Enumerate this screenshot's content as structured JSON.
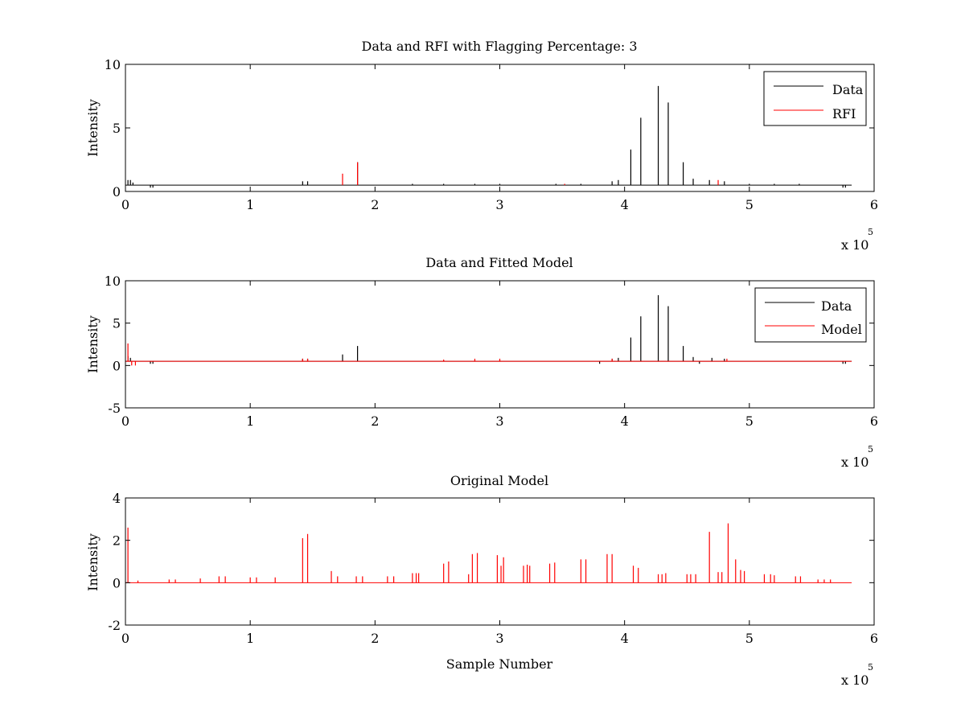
{
  "figure": {
    "background": "#ffffff",
    "axis_color": "#000000"
  },
  "chart_data": [
    {
      "type": "line",
      "title": "Data and RFI with Flagging Percentage: 3",
      "xlabel": "",
      "ylabel": "Intensity",
      "xlim": [
        0,
        6
      ],
      "ylim": [
        0,
        10
      ],
      "xticks": [
        "0",
        "1",
        "2",
        "3",
        "4",
        "5",
        "6"
      ],
      "yticks": [
        "0",
        "5",
        "10"
      ],
      "x_multiplier_base": "x 10",
      "x_multiplier_exp": "5",
      "grid": false,
      "legend_position": "top-right",
      "baseline": 0.5,
      "series": [
        {
          "name": "Data",
          "color": "#000000",
          "spikes": [
            [
              0.02,
              0.9
            ],
            [
              0.04,
              0.9
            ],
            [
              0.06,
              0.7
            ],
            [
              1.42,
              0.8
            ],
            [
              1.46,
              0.8
            ],
            [
              1.86,
              2.3
            ],
            [
              4.05,
              3.3
            ],
            [
              4.13,
              5.8
            ],
            [
              4.27,
              8.3
            ],
            [
              4.35,
              7.0
            ],
            [
              4.47,
              2.3
            ],
            [
              4.55,
              1.0
            ],
            [
              4.68,
              0.9
            ],
            [
              4.8,
              0.8
            ],
            [
              3.9,
              0.8
            ],
            [
              3.95,
              0.9
            ],
            [
              2.3,
              0.6
            ],
            [
              2.55,
              0.6
            ],
            [
              2.8,
              0.6
            ],
            [
              3.0,
              0.6
            ],
            [
              3.45,
              0.6
            ],
            [
              3.65,
              0.6
            ],
            [
              5.0,
              0.6
            ],
            [
              5.2,
              0.6
            ],
            [
              5.4,
              0.6
            ]
          ],
          "dips": [
            [
              0.2,
              0.3
            ],
            [
              0.22,
              0.3
            ],
            [
              5.75,
              0.3
            ],
            [
              5.77,
              0.3
            ]
          ]
        },
        {
          "name": "RFI",
          "color": "#ff0000",
          "spikes": [
            [
              1.74,
              1.4
            ],
            [
              1.86,
              2.3
            ],
            [
              3.52,
              0.6
            ],
            [
              4.75,
              0.9
            ]
          ]
        }
      ]
    },
    {
      "type": "line",
      "title": "Data and Fitted Model",
      "xlabel": "",
      "ylabel": "Intensity",
      "xlim": [
        0,
        6
      ],
      "ylim": [
        -5,
        10
      ],
      "xticks": [
        "0",
        "1",
        "2",
        "3",
        "4",
        "5",
        "6"
      ],
      "yticks": [
        "-5",
        "0",
        "5",
        "10"
      ],
      "x_multiplier_base": "x 10",
      "x_multiplier_exp": "5",
      "grid": false,
      "legend_position": "top-right",
      "baseline": 0.5,
      "series": [
        {
          "name": "Data",
          "color": "#000000",
          "spikes": [
            [
              0.02,
              1.1
            ],
            [
              0.04,
              0.9
            ],
            [
              1.42,
              0.8
            ],
            [
              1.46,
              0.8
            ],
            [
              1.74,
              1.3
            ],
            [
              1.86,
              2.3
            ],
            [
              4.05,
              3.3
            ],
            [
              4.13,
              5.8
            ],
            [
              4.27,
              8.3
            ],
            [
              4.35,
              7.0
            ],
            [
              4.47,
              2.3
            ],
            [
              4.55,
              1.0
            ],
            [
              3.9,
              0.8
            ],
            [
              3.95,
              0.9
            ],
            [
              4.7,
              0.9
            ],
            [
              4.8,
              0.8
            ],
            [
              2.55,
              0.6
            ],
            [
              2.8,
              0.6
            ],
            [
              3.0,
              0.6
            ]
          ],
          "dips": [
            [
              0.2,
              0.2
            ],
            [
              0.22,
              0.2
            ],
            [
              3.8,
              0.2
            ],
            [
              4.6,
              0.2
            ],
            [
              5.75,
              0.2
            ],
            [
              5.77,
              0.2
            ]
          ]
        },
        {
          "name": "Model",
          "color": "#ff0000",
          "spikes": [
            [
              0.02,
              2.6
            ],
            [
              1.42,
              0.8
            ],
            [
              1.46,
              0.8
            ],
            [
              2.55,
              0.7
            ],
            [
              2.8,
              0.8
            ],
            [
              3.0,
              0.8
            ],
            [
              3.9,
              0.8
            ],
            [
              4.82,
              0.8
            ]
          ],
          "dips": [
            [
              0.05,
              0.0
            ],
            [
              0.08,
              0.0
            ]
          ]
        }
      ]
    },
    {
      "type": "line",
      "title": "Original Model",
      "xlabel": "Sample Number",
      "ylabel": "Intensity",
      "xlim": [
        0,
        6
      ],
      "ylim": [
        -2,
        4
      ],
      "xticks": [
        "0",
        "1",
        "2",
        "3",
        "4",
        "5",
        "6"
      ],
      "yticks": [
        "-2",
        "0",
        "2",
        "4"
      ],
      "x_multiplier_base": "x 10",
      "x_multiplier_exp": "5",
      "grid": false,
      "legend_position": "none",
      "baseline": 0.0,
      "series": [
        {
          "name": "",
          "color": "#ff0000",
          "spikes": [
            [
              0.02,
              2.6
            ],
            [
              0.1,
              0.1
            ],
            [
              0.35,
              0.15
            ],
            [
              0.4,
              0.15
            ],
            [
              0.6,
              0.2
            ],
            [
              0.75,
              0.3
            ],
            [
              0.8,
              0.3
            ],
            [
              1.0,
              0.25
            ],
            [
              1.05,
              0.25
            ],
            [
              1.2,
              0.25
            ],
            [
              1.42,
              2.1
            ],
            [
              1.46,
              2.3
            ],
            [
              1.65,
              0.55
            ],
            [
              1.7,
              0.3
            ],
            [
              1.85,
              0.3
            ],
            [
              1.9,
              0.3
            ],
            [
              2.1,
              0.3
            ],
            [
              2.15,
              0.3
            ],
            [
              2.3,
              0.45
            ],
            [
              2.33,
              0.45
            ],
            [
              2.35,
              0.45
            ],
            [
              2.55,
              0.9
            ],
            [
              2.59,
              1.0
            ],
            [
              2.75,
              0.4
            ],
            [
              2.78,
              1.35
            ],
            [
              2.82,
              1.4
            ],
            [
              2.98,
              1.3
            ],
            [
              3.01,
              0.8
            ],
            [
              3.03,
              1.2
            ],
            [
              3.19,
              0.8
            ],
            [
              3.22,
              0.85
            ],
            [
              3.24,
              0.8
            ],
            [
              3.4,
              0.9
            ],
            [
              3.44,
              0.95
            ],
            [
              3.65,
              1.1
            ],
            [
              3.69,
              1.1
            ],
            [
              3.86,
              1.35
            ],
            [
              3.9,
              1.35
            ],
            [
              4.07,
              0.8
            ],
            [
              4.11,
              0.7
            ],
            [
              4.27,
              0.4
            ],
            [
              4.3,
              0.4
            ],
            [
              4.33,
              0.45
            ],
            [
              4.5,
              0.4
            ],
            [
              4.53,
              0.4
            ],
            [
              4.57,
              0.4
            ],
            [
              4.68,
              2.4
            ],
            [
              4.75,
              0.5
            ],
            [
              4.78,
              0.5
            ],
            [
              4.83,
              2.8
            ],
            [
              4.89,
              1.1
            ],
            [
              4.93,
              0.6
            ],
            [
              4.96,
              0.55
            ],
            [
              5.12,
              0.4
            ],
            [
              5.17,
              0.4
            ],
            [
              5.2,
              0.35
            ],
            [
              5.37,
              0.3
            ],
            [
              5.41,
              0.3
            ],
            [
              5.55,
              0.15
            ],
            [
              5.6,
              0.15
            ],
            [
              5.65,
              0.15
            ]
          ],
          "line_end": 5.82
        }
      ]
    }
  ]
}
